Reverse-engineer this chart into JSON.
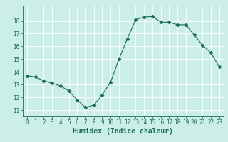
{
  "x": [
    0,
    1,
    2,
    3,
    4,
    5,
    6,
    7,
    8,
    9,
    10,
    11,
    12,
    13,
    14,
    15,
    16,
    17,
    18,
    19,
    20,
    21,
    22,
    23
  ],
  "y": [
    13.7,
    13.6,
    13.3,
    13.1,
    12.9,
    12.5,
    11.8,
    11.2,
    11.4,
    12.2,
    13.2,
    15.0,
    16.6,
    18.1,
    18.3,
    18.35,
    17.9,
    17.9,
    17.7,
    17.7,
    16.9,
    16.1,
    15.5,
    14.4
  ],
  "line_color": "#1a6b5a",
  "marker": "D",
  "marker_size": 2.5,
  "bg_color": "#cceee8",
  "grid_color": "#ffffff",
  "xlabel": "Humidex (Indice chaleur)",
  "xlim": [
    -0.5,
    23.5
  ],
  "ylim": [
    10.5,
    19.2
  ],
  "yticks": [
    11,
    12,
    13,
    14,
    15,
    16,
    17,
    18
  ],
  "xticks": [
    0,
    1,
    2,
    3,
    4,
    5,
    6,
    7,
    8,
    9,
    10,
    11,
    12,
    13,
    14,
    15,
    16,
    17,
    18,
    19,
    20,
    21,
    22,
    23
  ],
  "tick_fontsize": 5.5,
  "xlabel_fontsize": 7,
  "tick_color": "#1a6b5a",
  "axis_color": "#1a6b5a"
}
